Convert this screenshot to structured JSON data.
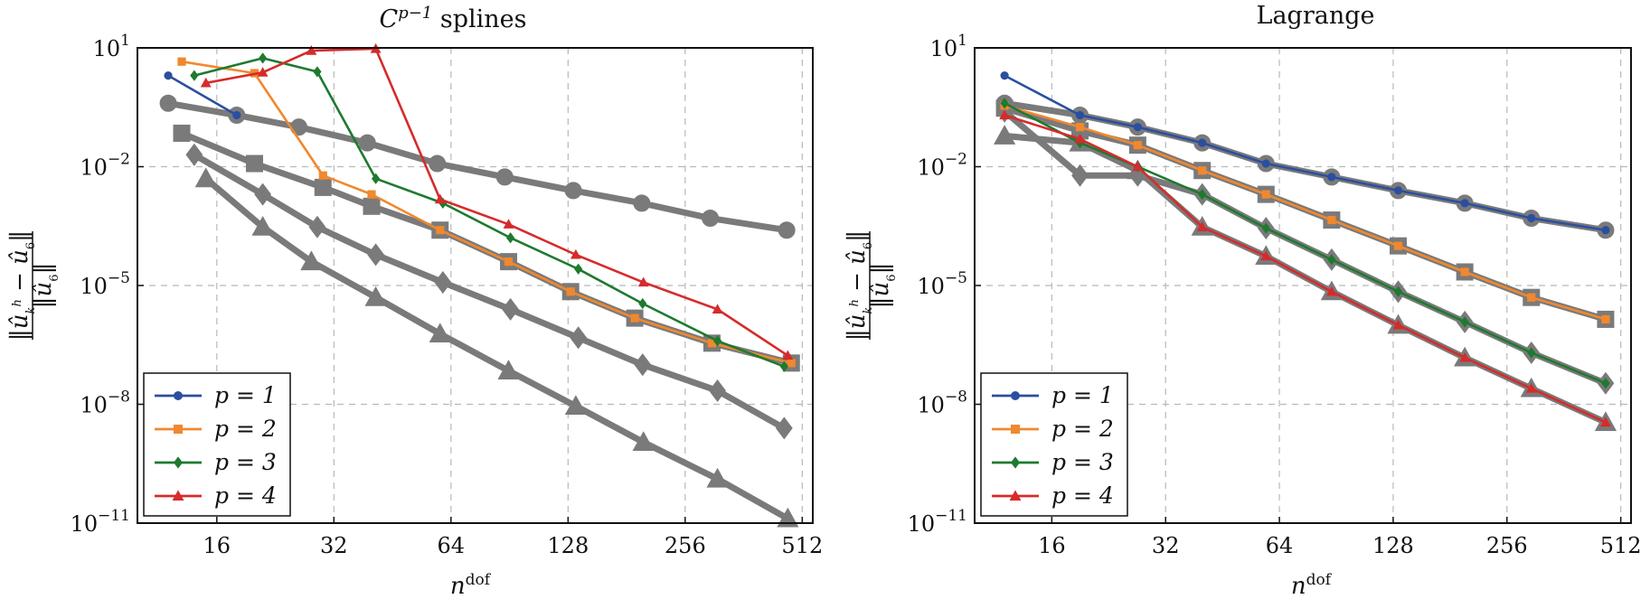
{
  "chart_data": [
    {
      "type": "line",
      "title": "C^{p−1} splines",
      "xlabel": "n^dof",
      "ylabel": "‖û_k^h − û_6‖ / ‖û_6‖",
      "xscale": "log2",
      "yscale": "log10",
      "xlim": [
        10,
        545
      ],
      "ylim": [
        1e-11,
        10
      ],
      "xticks": [
        16,
        32,
        64,
        128,
        256,
        512
      ],
      "xtick_labels": [
        "16",
        "32",
        "64",
        "128",
        "256",
        "512"
      ],
      "yticks": [
        1e-11,
        1e-08,
        1e-05,
        0.01,
        10
      ],
      "ytick_labels": [
        [
          "10",
          "−11"
        ],
        [
          "10",
          "−8"
        ],
        [
          "10",
          "−5"
        ],
        [
          "10",
          "−2"
        ],
        [
          "10",
          "1"
        ]
      ],
      "grid": true,
      "legend_position": "bottom-left",
      "series": [
        {
          "name": "p = 1",
          "color": "#2b4fa0",
          "marker": "circle",
          "x": [
            12,
            18
          ],
          "y": [
            2.0,
            0.2
          ]
        },
        {
          "name": "p = 2",
          "color": "#f0882f",
          "marker": "square",
          "x": [
            13,
            20,
            30,
            40,
            60,
            90,
            130,
            190,
            300,
            480
          ],
          "y": [
            4.5,
            2.3,
            0.006,
            0.002,
            0.00025,
            4e-05,
            7e-06,
            1.5e-06,
            3.5e-07,
            1.1e-07
          ]
        },
        {
          "name": "p = 3",
          "color": "#1e7a2f",
          "marker": "diamond",
          "x": [
            14,
            21,
            29,
            41,
            61,
            91,
            136,
            199,
            310,
            460
          ],
          "y": [
            2.0,
            5.5,
            2.5,
            0.005,
            0.0012,
            0.00016,
            2.6e-05,
            3.5e-06,
            4e-07,
            9e-08
          ]
        },
        {
          "name": "p = 4",
          "color": "#d62b2b",
          "marker": "triangle",
          "x": [
            15,
            21,
            28,
            41,
            60,
            90,
            134,
            200,
            310,
            470
          ],
          "y": [
            1.3,
            2.4,
            8.5,
            9.5,
            0.0015,
            0.00035,
            6e-05,
            1.2e-05,
            2.5e-06,
            1.7e-07
          ]
        }
      ],
      "reference_lines": [
        {
          "color": "#7a7a7a",
          "marker": "circle",
          "x": [
            12,
            18,
            26,
            39,
            59,
            88,
            132,
            198,
            297,
            467
          ],
          "y": [
            0.4,
            0.2,
            0.1,
            0.04,
            0.012,
            0.0055,
            0.0025,
            0.0012,
            0.0005,
            0.00025
          ]
        },
        {
          "color": "#7a7a7a",
          "marker": "square",
          "x": [
            13,
            20,
            30,
            40,
            60,
            90,
            130,
            190,
            300,
            480
          ],
          "y": [
            0.07,
            0.012,
            0.003,
            0.001,
            0.00025,
            4e-05,
            7e-06,
            1.5e-06,
            3.5e-07,
            1.1e-07
          ]
        },
        {
          "color": "#7a7a7a",
          "marker": "diamond",
          "x": [
            14,
            21,
            29,
            41,
            61,
            91,
            136,
            199,
            310,
            460
          ],
          "y": [
            0.02,
            0.002,
            0.0003,
            6e-05,
            1.2e-05,
            2.5e-06,
            4.8e-07,
            1e-07,
            2.2e-08,
            2.5e-09
          ]
        },
        {
          "color": "#7a7a7a",
          "marker": "triangle",
          "x": [
            15,
            21,
            28,
            41,
            60,
            90,
            134,
            200,
            310,
            470
          ],
          "y": [
            0.005,
            0.0003,
            4e-05,
            5e-06,
            6e-07,
            7e-08,
            9e-09,
            1.1e-09,
            1.3e-10,
            1.3e-11
          ]
        }
      ]
    },
    {
      "type": "line",
      "title": "Lagrange",
      "xlabel": "n^dof",
      "ylabel": "‖û_k^h − û_6‖ / ‖û_6‖",
      "xscale": "log2",
      "yscale": "log10",
      "xlim": [
        10,
        545
      ],
      "ylim": [
        1e-11,
        10
      ],
      "xticks": [
        16,
        32,
        64,
        128,
        256,
        512
      ],
      "xtick_labels": [
        "16",
        "32",
        "64",
        "128",
        "256",
        "512"
      ],
      "yticks": [
        1e-11,
        1e-08,
        1e-05,
        0.01,
        10
      ],
      "ytick_labels": [
        [
          "10",
          "−11"
        ],
        [
          "10",
          "−8"
        ],
        [
          "10",
          "−5"
        ],
        [
          "10",
          "−2"
        ],
        [
          "10",
          "1"
        ]
      ],
      "grid": true,
      "legend_position": "bottom-left",
      "series": [
        {
          "name": "p = 1",
          "color": "#2b4fa0",
          "marker": "circle",
          "x": [
            12,
            19,
            27,
            40,
            59,
            88,
            132,
            198,
            297,
            467
          ],
          "y": [
            2.0,
            0.2,
            0.1,
            0.04,
            0.012,
            0.0055,
            0.0025,
            0.0012,
            0.0005,
            0.00025
          ]
        },
        {
          "name": "p = 2",
          "color": "#f0882f",
          "marker": "square",
          "x": [
            12,
            19,
            27,
            40,
            59,
            88,
            132,
            198,
            297,
            467
          ],
          "y": [
            0.35,
            0.1,
            0.035,
            0.008,
            0.002,
            0.00045,
            0.0001,
            2.2e-05,
            5e-06,
            1.4e-06
          ]
        },
        {
          "name": "p = 3",
          "color": "#1e7a2f",
          "marker": "diamond",
          "x": [
            12,
            19,
            27,
            40,
            59,
            88,
            132,
            198,
            297,
            467
          ],
          "y": [
            0.4,
            0.04,
            0.01,
            0.002,
            0.00028,
            4.5e-05,
            7e-06,
            1.2e-06,
            2e-07,
            3.4e-08
          ]
        },
        {
          "name": "p = 4",
          "color": "#d62b2b",
          "marker": "triangle",
          "x": [
            12,
            19,
            27,
            40,
            59,
            88,
            132,
            198,
            297,
            467
          ],
          "y": [
            0.2,
            0.05,
            0.01,
            0.0003,
            5.5e-05,
            7e-06,
            1e-06,
            1.5e-07,
            2.5e-08,
            3.5e-09
          ]
        }
      ],
      "reference_lines": [
        {
          "color": "#7a7a7a",
          "marker": "circle",
          "x": [
            12,
            19,
            27,
            40,
            59,
            88,
            132,
            198,
            297,
            467
          ],
          "y": [
            0.4,
            0.2,
            0.1,
            0.04,
            0.012,
            0.0055,
            0.0025,
            0.0012,
            0.0005,
            0.00025
          ]
        },
        {
          "color": "#7a7a7a",
          "marker": "square",
          "x": [
            12,
            19,
            27,
            40,
            59,
            88,
            132,
            198,
            297,
            467
          ],
          "y": [
            0.3,
            0.08,
            0.035,
            0.008,
            0.002,
            0.00045,
            0.0001,
            2.2e-05,
            5e-06,
            1.4e-06
          ]
        },
        {
          "color": "#7a7a7a",
          "marker": "diamond",
          "x": [
            12,
            19,
            27,
            40,
            59,
            88,
            132,
            198,
            297,
            467
          ],
          "y": [
            0.25,
            0.006,
            0.006,
            0.002,
            0.00028,
            4.5e-05,
            7e-06,
            1.2e-06,
            2e-07,
            3.4e-08
          ]
        },
        {
          "color": "#7a7a7a",
          "marker": "triangle",
          "x": [
            12,
            19,
            27,
            40,
            59,
            88,
            132,
            198,
            297,
            467
          ],
          "y": [
            0.06,
            0.04,
            0.008,
            0.0003,
            5.5e-05,
            7e-06,
            1e-06,
            1.5e-07,
            2.5e-08,
            3.5e-09
          ]
        }
      ]
    }
  ]
}
